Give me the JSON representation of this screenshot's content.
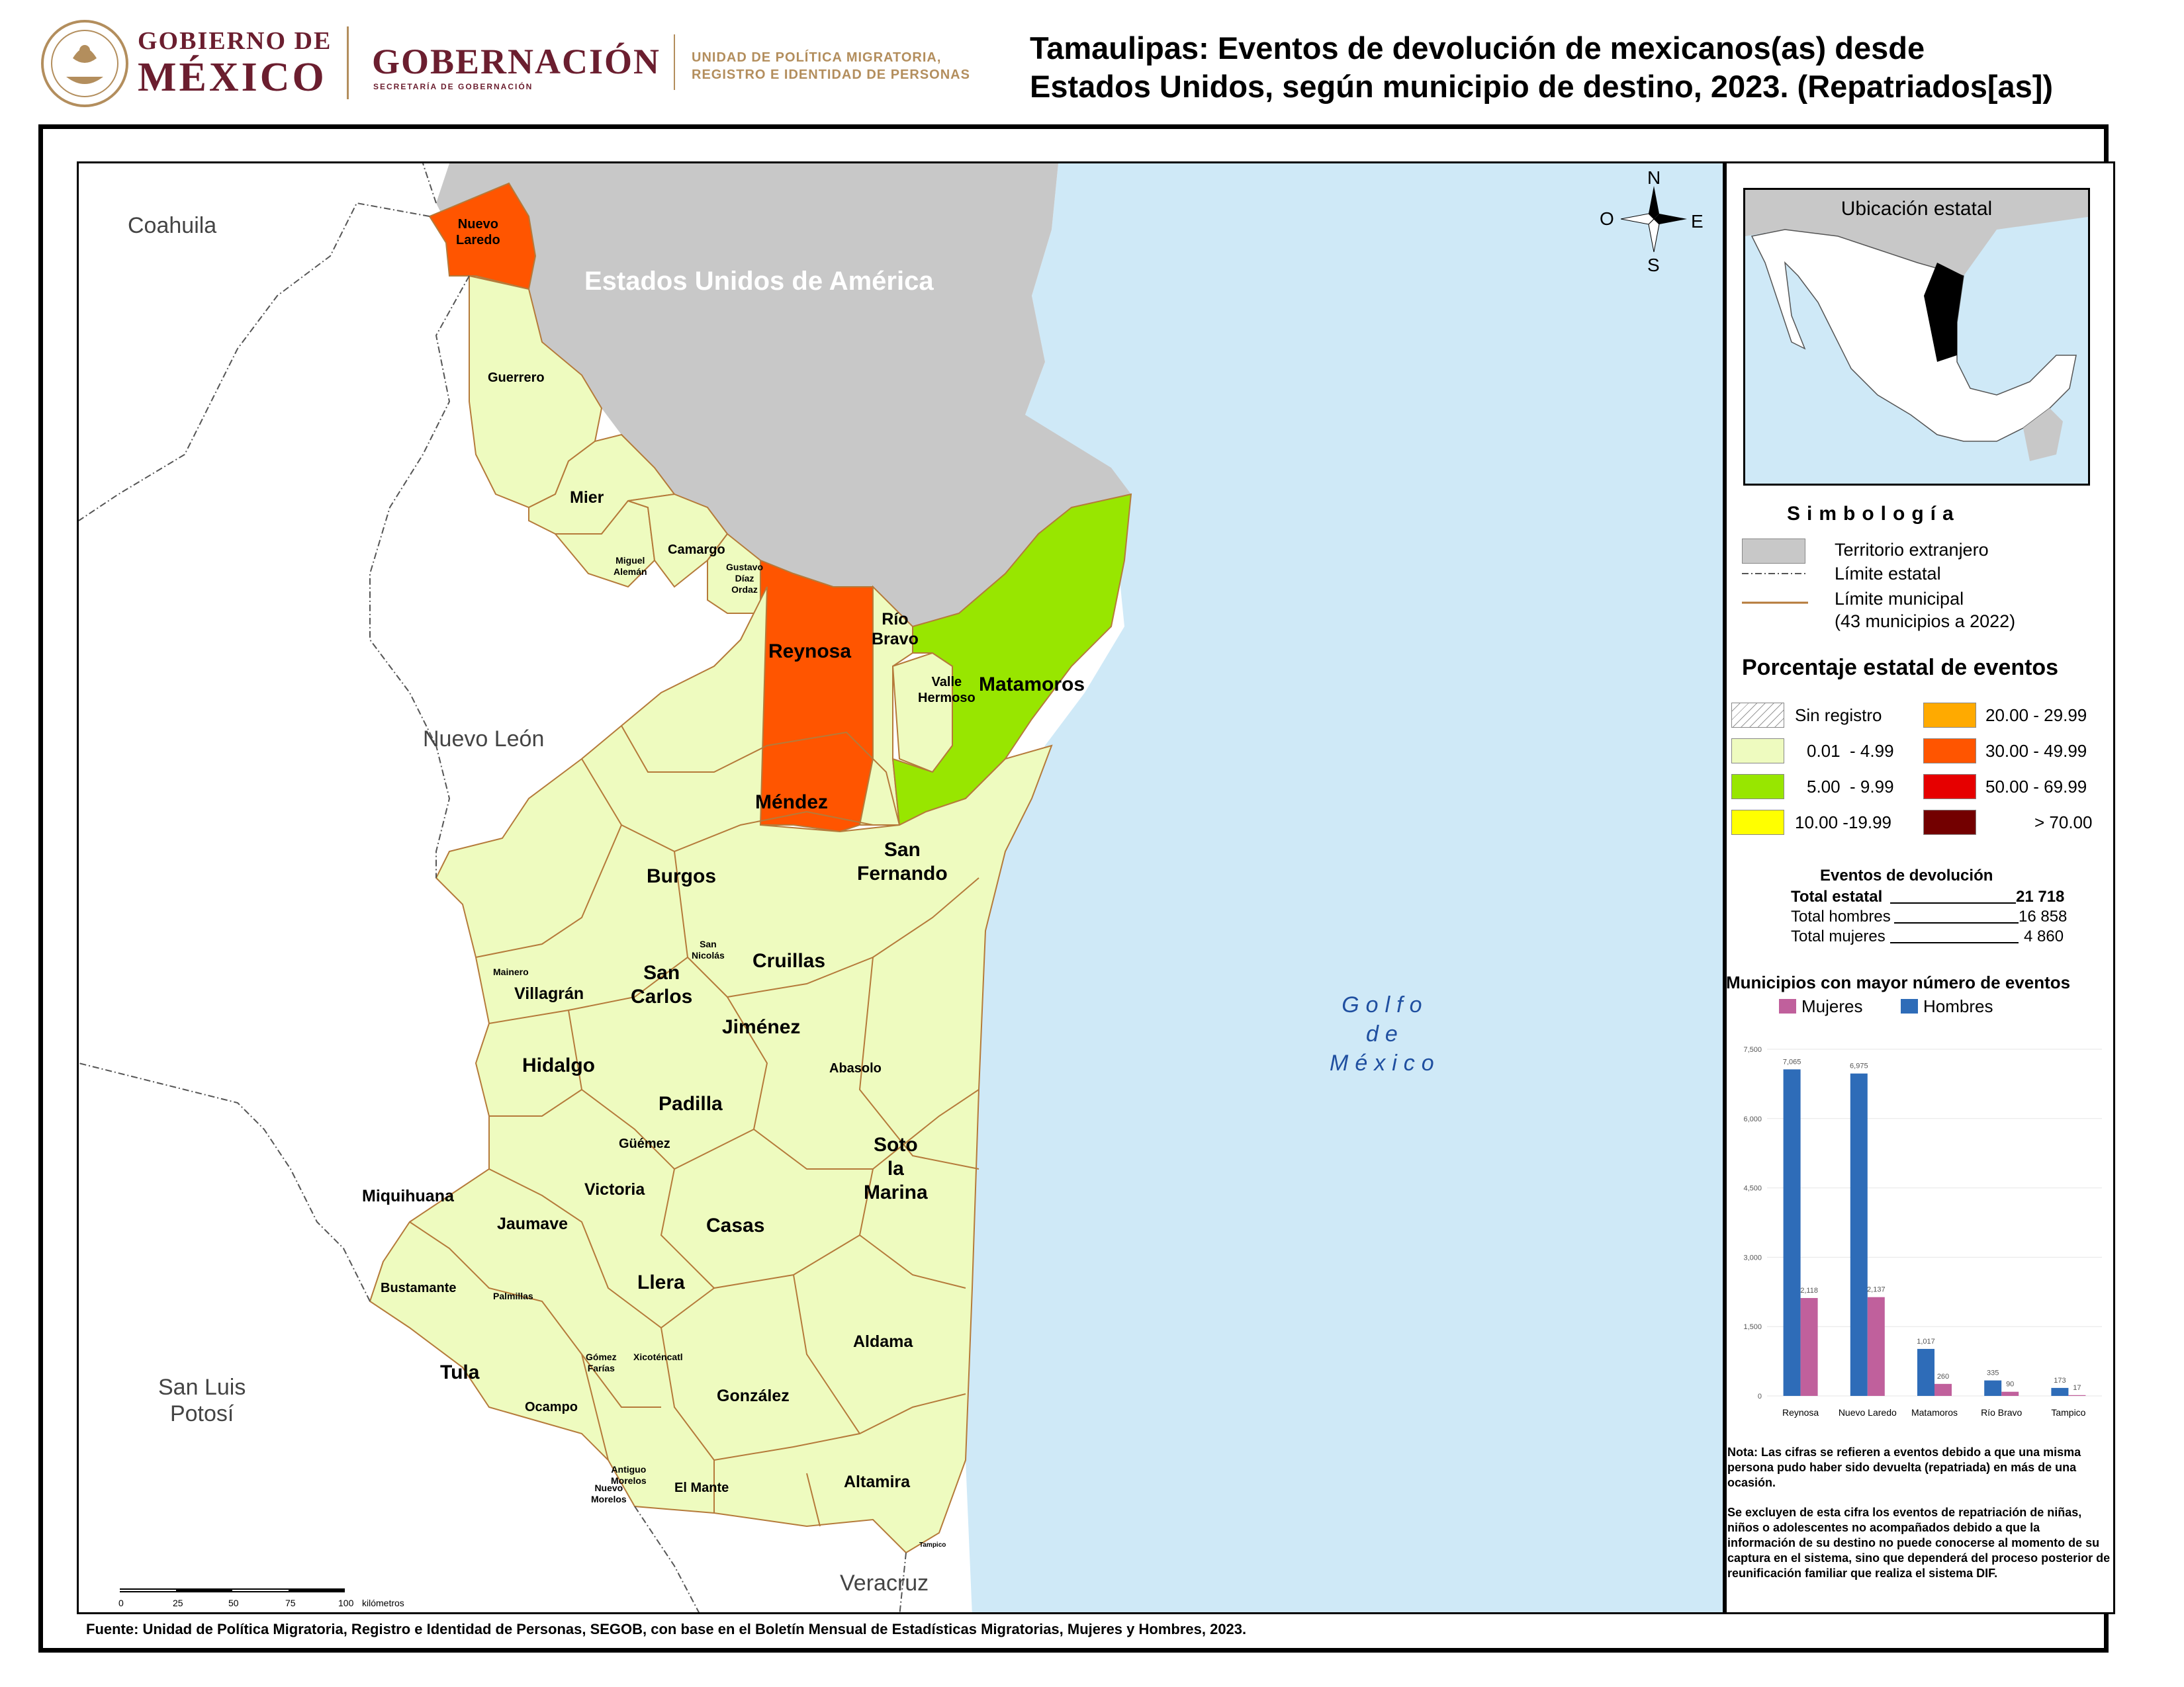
{
  "header": {
    "logo_line1": "GOBIERNO DE",
    "logo_line2": "MÉXICO",
    "dependency": "GOBERNACIÓN",
    "dependency_sub": "SECRETARÍA DE GOBERNACIÓN",
    "unit_line1": "UNIDAD DE POLÍTICA MIGRATORIA,",
    "unit_line2": "REGISTRO E IDENTIDAD DE PERSONAS",
    "title_line1": "Tamaulipas: Eventos de devolución de mexicanos(as) desde",
    "title_line2": "Estados Unidos, según municipio de destino, 2023. (Repatriados[as])"
  },
  "map": {
    "neighbors": {
      "coahuila": "Coahuila",
      "nuevo_leon": "Nuevo León",
      "slp_line1": "San Luis",
      "slp_line2": "Potosí",
      "veracruz": "Veracruz",
      "usa": "Estados Unidos de América",
      "golfo_line1": "Golfo",
      "golfo_line2": "de",
      "golfo_line3": "México"
    },
    "compass": {
      "n": "N",
      "s": "S",
      "e": "E",
      "o": "O"
    },
    "colors": {
      "sin_registro": "#ffffff",
      "c0_5": "#eefbbf",
      "c5_10": "#98e600",
      "c10_20": "#ffff00",
      "c20_30": "#ffaa00",
      "c30_50": "#ff5500",
      "c50_70": "#e60000",
      "c70": "#730000",
      "foreign": "#c8c8c8",
      "water": "#cfe9f7",
      "muni_border": "#b57a3a"
    },
    "municipios": {
      "nuevo_laredo_1": "Nuevo",
      "nuevo_laredo_2": "Laredo",
      "guerrero": "Guerrero",
      "mier": "Mier",
      "miguel_aleman_1": "Miguel",
      "miguel_aleman_2": "Alemán",
      "camargo": "Camargo",
      "gdo_1": "Gustavo",
      "gdo_2": "Díaz",
      "gdo_3": "Ordaz",
      "reynosa": "Reynosa",
      "rio_bravo_1": "Río",
      "rio_bravo_2": "Bravo",
      "valle_hermoso_1": "Valle",
      "valle_hermoso_2": "Hermoso",
      "matamoros": "Matamoros",
      "mendez": "Méndez",
      "burgos": "Burgos",
      "san_fernando_1": "San",
      "san_fernando_2": "Fernando",
      "san_nicolas_1": "San",
      "san_nicolas_2": "Nicolás",
      "cruillas": "Cruillas",
      "mainero": "Mainero",
      "villagran": "Villagrán",
      "san_carlos_1": "San",
      "san_carlos_2": "Carlos",
      "jimenez": "Jiménez",
      "hidalgo": "Hidalgo",
      "abasolo": "Abasolo",
      "padilla": "Padilla",
      "guemez": "Güémez",
      "soto_1": "Soto",
      "soto_2": "la",
      "soto_3": "Marina",
      "victoria": "Victoria",
      "miquihuana": "Miquihuana",
      "jaumave": "Jaumave",
      "casas": "Casas",
      "bustamante": "Bustamante",
      "palmillas": "Palmillas",
      "llera": "Llera",
      "aldama": "Aldama",
      "tula": "Tula",
      "gomez_farias_1": "Gómez",
      "gomez_farias_2": "Farías",
      "xicotencatl": "Xicoténcatl",
      "gonzalez": "González",
      "ocampo": "Ocampo",
      "antiguo_morelos_1": "Antiguo",
      "antiguo_morelos_2": "Morelos",
      "nuevo_morelos_1": "Nuevo",
      "nuevo_morelos_2": "Morelos",
      "el_mante": "El Mante",
      "altamira": "Altamira",
      "tampico": "Tampico"
    },
    "scale": {
      "ticks": [
        "0",
        "25",
        "50",
        "75",
        "100"
      ],
      "unit": "kilómetros"
    }
  },
  "sidebar": {
    "inset_title": "Ubicación estatal",
    "simbologia": "Simbología",
    "legend": {
      "territorio": "Territorio extranjero",
      "limite_estatal": "Límite estatal",
      "limite_municipal": "Límite municipal",
      "municipios_note": "(43 municipios a 2022)"
    },
    "pct_title": "Porcentaje estatal de eventos",
    "pct_classes": [
      {
        "label": "Sin registro",
        "color": "#ffffff"
      },
      {
        "label": "0.01  - 4.99",
        "color": "#eefbbf"
      },
      {
        "label": "5.00  - 9.99",
        "color": "#98e600"
      },
      {
        "label": "10.00 -19.99",
        "color": "#ffff00"
      },
      {
        "label": "20.00 - 29.99",
        "color": "#ffaa00"
      },
      {
        "label": "30.00 - 49.99",
        "color": "#ff5500"
      },
      {
        "label": "50.00 - 69.99",
        "color": "#e60000"
      },
      {
        "label": "> 70.00",
        "color": "#730000"
      }
    ],
    "eventos": {
      "title": "Eventos de devolución",
      "total_estatal_label": "Total estatal",
      "total_estatal": "21 718",
      "total_hombres_label": "Total hombres",
      "total_hombres": "16 858",
      "total_mujeres_label": "Total mujeres",
      "total_mujeres": "4 860"
    },
    "top_title": "Municipios con mayor número de eventos",
    "nota_1": "Nota: Las cifras se refieren a eventos debido a que una misma persona pudo haber sido devuelta (repatriada) en más de una ocasión.",
    "nota_2": "Se excluyen de esta cifra los eventos de repatriación de niñas, niños o adolescentes no acompañados debido a que la información de su destino no puede conocerse al momento de su captura en el sistema, sino que dependerá del proceso posterior de reunificación familiar que realiza el sistema DIF."
  },
  "chart_data": {
    "type": "bar",
    "title": "Municipios con mayor número de eventos",
    "categories": [
      "Reynosa",
      "Nuevo Laredo",
      "Matamoros",
      "Río Bravo",
      "Tampico"
    ],
    "series": [
      {
        "name": "Mujeres",
        "color": "#c0609c",
        "values": [
          2118,
          2137,
          260,
          90,
          17
        ],
        "labels": [
          "2,118",
          "2,137",
          "260",
          "90",
          "17"
        ]
      },
      {
        "name": "Hombres",
        "color": "#2e6cb8",
        "values": [
          7065,
          6975,
          1017,
          335,
          173
        ],
        "labels": [
          "7,065",
          "6,975",
          "1,017",
          "335",
          "173"
        ]
      }
    ],
    "yticks": [
      "0",
      "1,500",
      "3,000",
      "4,500",
      "6,000",
      "7,500"
    ],
    "ylim": [
      0,
      7500
    ],
    "legend": "top"
  },
  "footer": {
    "fuente": "Fuente: Unidad de Política Migratoria, Registro e Identidad de Personas, SEGOB, con base en el Boletín Mensual de Estadísticas Migratorias, Mujeres y Hombres, 2023."
  }
}
